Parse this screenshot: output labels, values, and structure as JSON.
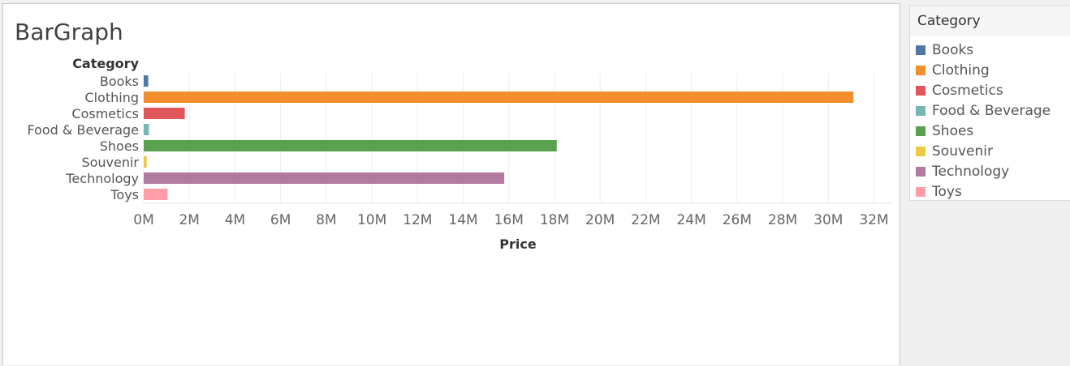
{
  "sheet": {
    "title": "BarGraph"
  },
  "legend": {
    "title": "Category",
    "items": [
      {
        "label": "Books",
        "color": "#4e79a7"
      },
      {
        "label": "Clothing",
        "color": "#f28e2b"
      },
      {
        "label": "Cosmetics",
        "color": "#e15759"
      },
      {
        "label": "Food & Beverage",
        "color": "#76b7b2"
      },
      {
        "label": "Shoes",
        "color": "#59a14f"
      },
      {
        "label": "Souvenir",
        "color": "#edc948"
      },
      {
        "label": "Technology",
        "color": "#b07aa1"
      },
      {
        "label": "Toys",
        "color": "#ff9da7"
      }
    ]
  },
  "chart_data": {
    "type": "bar",
    "orientation": "horizontal",
    "title": "BarGraph",
    "ylabel": "Category",
    "xlabel": "Price",
    "categories": [
      "Books",
      "Clothing",
      "Cosmetics",
      "Food & Beverage",
      "Shoes",
      "Souvenir",
      "Technology",
      "Toys"
    ],
    "values": [
      200000,
      31100000,
      1800000,
      230000,
      18100000,
      130000,
      15800000,
      1050000
    ],
    "colors": [
      "#4e79a7",
      "#f28e2b",
      "#e15759",
      "#76b7b2",
      "#59a14f",
      "#edc948",
      "#b07aa1",
      "#ff9da7"
    ],
    "xlim": [
      0,
      32800000
    ],
    "x_ticks": [
      0,
      2000000,
      4000000,
      6000000,
      8000000,
      10000000,
      12000000,
      14000000,
      16000000,
      18000000,
      20000000,
      22000000,
      24000000,
      26000000,
      28000000,
      30000000,
      32000000
    ],
    "x_tick_labels": [
      "0M",
      "2M",
      "4M",
      "6M",
      "8M",
      "10M",
      "12M",
      "14M",
      "16M",
      "18M",
      "20M",
      "22M",
      "24M",
      "26M",
      "28M",
      "30M",
      "32M"
    ],
    "grid": true,
    "legend": "right"
  }
}
